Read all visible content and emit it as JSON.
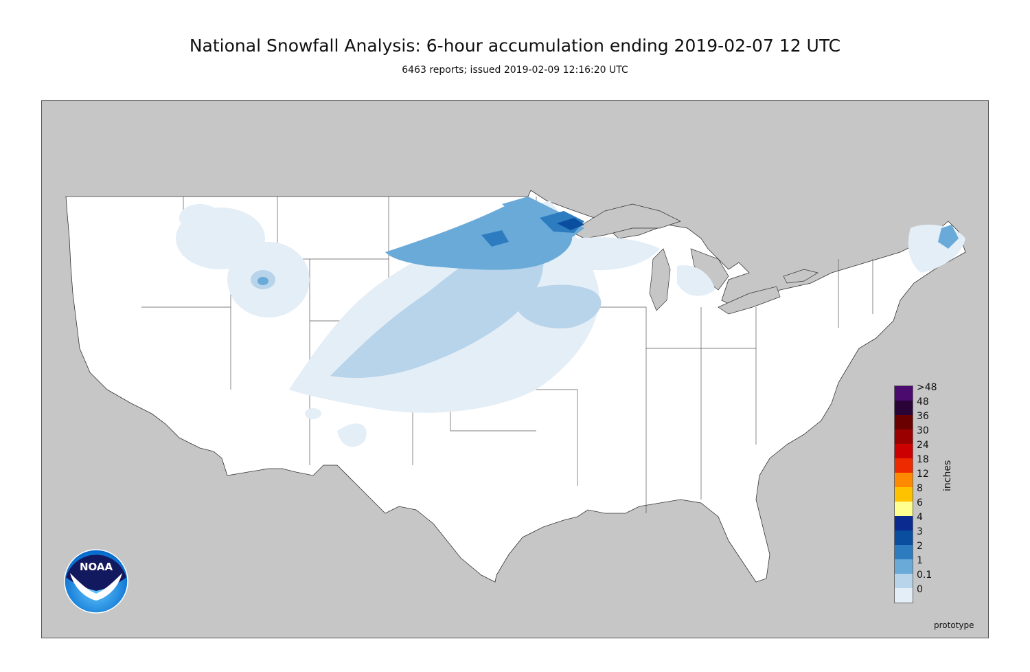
{
  "header": {
    "title": "National Snowfall Analysis: 6-hour accumulation ending 2019-02-07 12 UTC",
    "subtitle": "6463 reports; issued 2019-02-09 12:16:20 UTC"
  },
  "legend": {
    "unit": "inches",
    "levels": [
      {
        "label": ">48",
        "color": "#4a0a6e"
      },
      {
        "label": "48",
        "color": "#2a0437"
      },
      {
        "label": "36",
        "color": "#6a0000"
      },
      {
        "label": "30",
        "color": "#9a0000"
      },
      {
        "label": "24",
        "color": "#cc0000"
      },
      {
        "label": "18",
        "color": "#ee2a00"
      },
      {
        "label": "12",
        "color": "#ff8a00"
      },
      {
        "label": "8",
        "color": "#ffc200"
      },
      {
        "label": "6",
        "color": "#ffff90"
      },
      {
        "label": "4",
        "color": "#0b2a8f"
      },
      {
        "label": "3",
        "color": "#0a4ea0"
      },
      {
        "label": "2",
        "color": "#2e7cc0"
      },
      {
        "label": "1",
        "color": "#6aaad8"
      },
      {
        "label": "0.1",
        "color": "#b8d4ea"
      },
      {
        "label": "0",
        "color": "#e4eef7"
      }
    ]
  },
  "map": {
    "land_color": "#ffffff",
    "background_color": "#c6c6c6",
    "snow_light_color": "#e4eef7",
    "snow_low_color": "#b8d4ea",
    "snow_mid_color": "#6aaad8",
    "snow_high_color": "#2e7cc0",
    "snow_max_color": "#0a4ea0"
  },
  "footer": {
    "note": "prototype",
    "logo_text": "NOAA"
  }
}
